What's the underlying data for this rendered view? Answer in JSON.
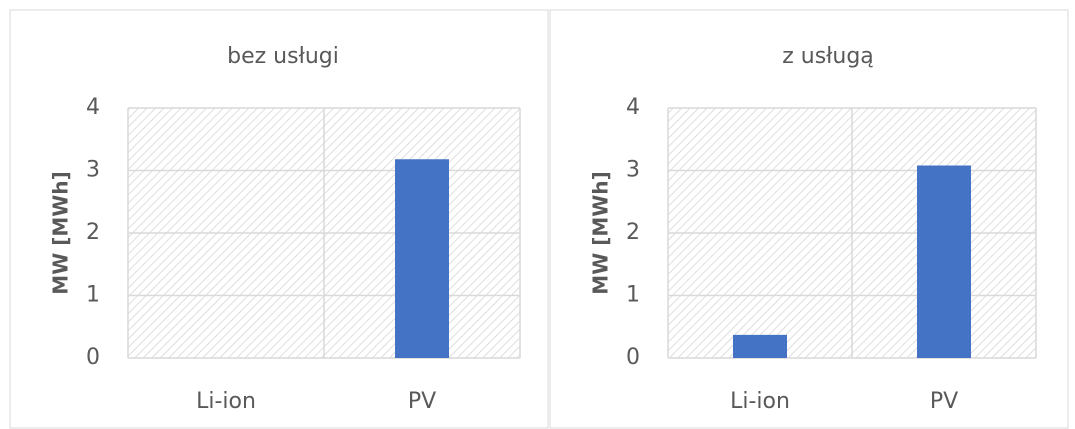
{
  "charts": [
    {
      "type": "bar",
      "title": "bez usługi",
      "y_label": "MW [MWh]",
      "categories": [
        "Li-ion",
        "PV"
      ],
      "values": [
        0,
        3.18
      ],
      "color": "#4472c4",
      "ylim": [
        0,
        4
      ],
      "yticks": [
        0,
        1,
        2,
        3,
        4
      ],
      "grid": true
    },
    {
      "type": "bar",
      "title": "z usługą",
      "y_label": "MW [MWh]",
      "categories": [
        "Li-ion",
        "PV"
      ],
      "values": [
        0.37,
        3.08
      ],
      "color": "#4472c4",
      "ylim": [
        0,
        4
      ],
      "yticks": [
        0,
        1,
        2,
        3,
        4
      ],
      "grid": true
    }
  ]
}
